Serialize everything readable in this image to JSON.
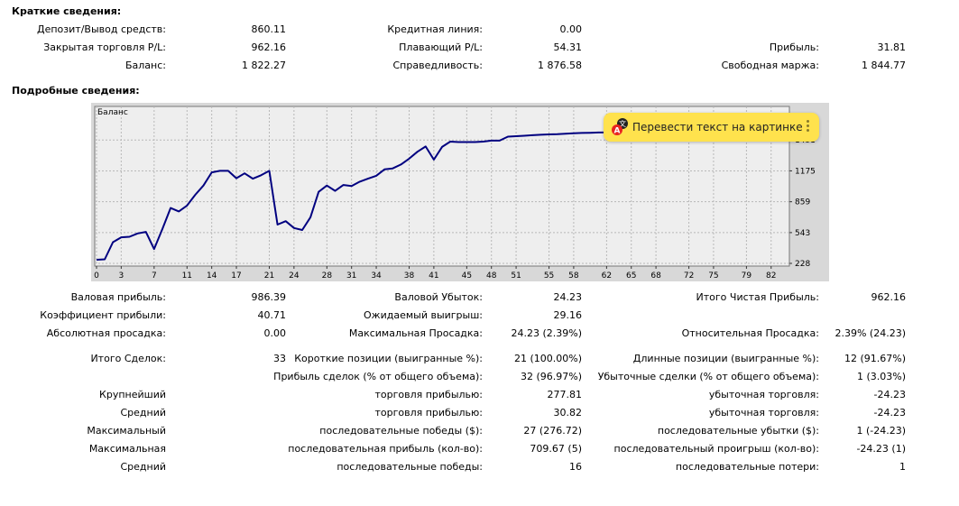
{
  "summary": {
    "title": "Краткие сведения:",
    "rows": [
      [
        {
          "label": "Депозит/Вывод средств:",
          "value": "860.11"
        },
        {
          "label": "Кредитная линия:",
          "value": "0.00"
        },
        null
      ],
      [
        {
          "label": "Закрытая торговля P/L:",
          "value": "962.16"
        },
        {
          "label": "Плавающий P/L:",
          "value": "54.31"
        },
        {
          "label": "Прибыль:",
          "value": "31.81"
        }
      ],
      [
        {
          "label": "Баланс:",
          "value": "1 822.27"
        },
        {
          "label": "Справедливость:",
          "value": "1 876.58"
        },
        {
          "label": "Свободная маржа:",
          "value": "1 844.77"
        }
      ]
    ]
  },
  "details": {
    "title": "Подробные сведения:",
    "rows_a": [
      [
        {
          "label": "Валовая прибыль:",
          "value": "986.39"
        },
        {
          "label": "Валовой Убыток:",
          "value": "24.23"
        },
        {
          "label": "Итого Чистая Прибыль:",
          "value": "962.16"
        }
      ],
      [
        {
          "label": "Коэффициент прибыли:",
          "value": "40.71"
        },
        {
          "label": "Ожидаемый выигрыш:",
          "value": "29.16"
        },
        null
      ],
      [
        {
          "label": "Абсолютная просадка:",
          "value": "0.00"
        },
        {
          "label": "Максимальная Просадка:",
          "value": "24.23 (2.39%)"
        },
        {
          "label": "Относительная Просадка:",
          "value": "2.39% (24.23)"
        }
      ]
    ],
    "rows_b": [
      {
        "left": "Итого Сделок:",
        "left_value": "33",
        "mid_label": "Короткие позиции (выигранные %):",
        "mid_value": "21 (100.00%)",
        "right_label": "Длинные позиции (выигранные %):",
        "right_value": "12 (91.67%)"
      },
      {
        "left": "",
        "left_value": "",
        "mid_label": "Прибыль сделок (% от общего объема):",
        "mid_value": "32 (96.97%)",
        "right_label": "Убыточные сделки (% от общего объема):",
        "right_value": "1 (3.03%)"
      },
      {
        "left": "Крупнейший",
        "left_value": "",
        "mid_label": "торговля прибылью:",
        "mid_value": "277.81",
        "right_label": "убыточная торговля:",
        "right_value": "-24.23"
      },
      {
        "left": "Средний",
        "left_value": "",
        "mid_label": "торговля прибылью:",
        "mid_value": "30.82",
        "right_label": "убыточная торговля:",
        "right_value": "-24.23"
      },
      {
        "left": "Максимальный",
        "left_value": "",
        "mid_label": "последовательные победы ($):",
        "mid_value": "27 (276.72)",
        "right_label": "последовательные убытки ($):",
        "right_value": "1 (-24.23)"
      },
      {
        "left": "Максимальная",
        "left_value": "",
        "mid_label": "последовательная прибыль (кол-во):",
        "mid_value": "709.67 (5)",
        "right_label": "последовательный проигрыш (кол-во):",
        "right_value": "-24.23 (1)"
      },
      {
        "left": "Средний",
        "left_value": "",
        "mid_label": "последовательные победы:",
        "mid_value": "16",
        "right_label": "последовательные потери:",
        "right_value": "1"
      }
    ]
  },
  "popup": {
    "text": "Перевести текст на картинке",
    "icon": "translate-icon",
    "menu_icon": "more-vertical-icon"
  },
  "chart_data": {
    "type": "line",
    "title": "Баланс",
    "xlabel": "",
    "ylabel": "",
    "x_ticks": [
      0,
      3,
      7,
      11,
      14,
      17,
      21,
      24,
      28,
      31,
      34,
      38,
      41,
      45,
      48,
      51,
      55,
      58,
      62,
      65,
      68,
      72,
      75,
      79,
      82
    ],
    "y_ticks": [
      228,
      543,
      859,
      1175,
      1491
    ],
    "xlim": [
      0,
      84
    ],
    "ylim": [
      228,
      1807
    ],
    "grid": true,
    "line_color": "#000080",
    "series": [
      {
        "x": [
          0,
          1,
          2,
          3,
          4,
          5,
          6,
          7,
          8,
          9,
          10,
          11,
          12,
          13,
          14,
          15,
          16,
          17,
          18,
          19,
          20,
          21,
          22,
          23,
          24,
          25,
          26,
          27,
          28,
          29,
          30,
          31,
          32,
          33,
          34,
          35,
          36,
          37,
          38,
          39,
          40,
          41,
          42,
          43,
          44,
          45,
          46,
          47,
          48,
          49,
          50,
          51,
          52,
          53,
          54,
          55,
          56,
          57,
          58,
          59,
          60,
          61,
          62,
          63,
          64,
          65,
          66,
          67,
          68,
          69,
          70,
          71
        ],
        "values": [
          265,
          270,
          445,
          495,
          500,
          535,
          550,
          375,
          580,
          795,
          760,
          820,
          930,
          1025,
          1160,
          1175,
          1175,
          1100,
          1150,
          1095,
          1130,
          1175,
          625,
          660,
          590,
          570,
          700,
          960,
          1025,
          970,
          1030,
          1020,
          1065,
          1095,
          1125,
          1190,
          1200,
          1240,
          1300,
          1370,
          1425,
          1290,
          1420,
          1475,
          1470,
          1470,
          1470,
          1475,
          1485,
          1485,
          1525,
          1530,
          1535,
          1540,
          1545,
          1548,
          1550,
          1555,
          1560,
          1563,
          1565,
          1568,
          1570,
          1575,
          1580,
          1585,
          1590,
          1595,
          1600,
          1602,
          1605,
          1610
        ]
      }
    ]
  }
}
